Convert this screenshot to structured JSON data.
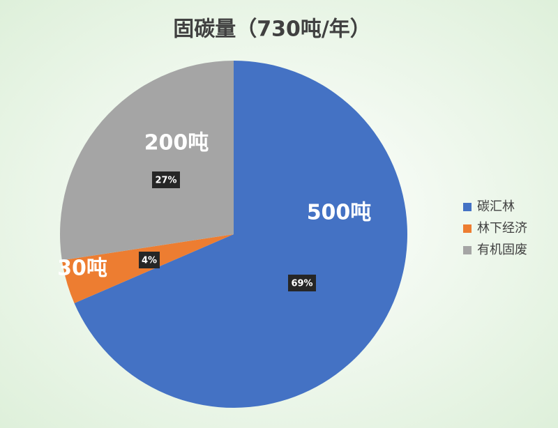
{
  "chart_data": {
    "type": "pie",
    "title": "固碳量（730吨/年）",
    "categories": [
      "碳汇林",
      "林下经济",
      "有机固废"
    ],
    "values": [
      500,
      30,
      200
    ],
    "value_labels": [
      "500吨",
      "30吨",
      "200吨"
    ],
    "percent_labels": [
      "69%",
      "4%",
      "27%"
    ],
    "colors": [
      "#4472c4",
      "#ed7d31",
      "#a5a5a5"
    ],
    "legend": "right"
  }
}
